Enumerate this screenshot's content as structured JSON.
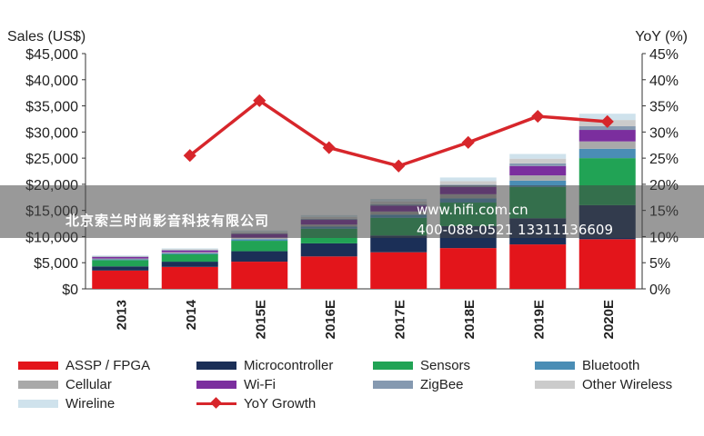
{
  "chart_data": {
    "type": "bar",
    "stacked": true,
    "y_left_label": "Sales (US$)",
    "y_right_label": "YoY (%)",
    "ylim": [
      0,
      45000
    ],
    "y_right_lim": [
      0,
      45
    ],
    "y_ticks": [
      "$0",
      "$5,000",
      "$10,000",
      "$15,000",
      "$20,000",
      "$25,000",
      "$30,000",
      "$35,000",
      "$40,000",
      "$45,000"
    ],
    "y_right_ticks": [
      "0%",
      "5%",
      "10%",
      "15%",
      "20%",
      "25%",
      "30%",
      "35%",
      "40%",
      "45%"
    ],
    "categories": [
      "2013",
      "2014",
      "2015E",
      "2016E",
      "2017E",
      "2018E",
      "2019E",
      "2020E"
    ],
    "series": [
      {
        "name": "ASSP / FPGA",
        "color": "#e3151b",
        "values": [
          3500,
          4200,
          5200,
          6200,
          7000,
          7800,
          8500,
          9500
        ]
      },
      {
        "name": "Microcontroller",
        "color": "#1b2f57",
        "values": [
          800,
          1000,
          2000,
          2500,
          3200,
          4200,
          5000,
          6500
        ]
      },
      {
        "name": "Sensors",
        "color": "#21a355",
        "values": [
          1200,
          1400,
          2000,
          2800,
          3400,
          4500,
          6000,
          9000
        ]
      },
      {
        "name": "Bluetooth",
        "color": "#4a8db5",
        "values": [
          150,
          200,
          300,
          400,
          600,
          800,
          1200,
          1800
        ]
      },
      {
        "name": "Cellular",
        "color": "#a9a9a9",
        "values": [
          150,
          200,
          300,
          400,
          600,
          800,
          1000,
          1400
        ]
      },
      {
        "name": "Wi-Fi",
        "color": "#7b2e9e",
        "values": [
          300,
          350,
          700,
          900,
          1100,
          1400,
          1800,
          2200
        ]
      },
      {
        "name": "ZigBee",
        "color": "#8599b0",
        "values": [
          80,
          100,
          150,
          200,
          300,
          400,
          500,
          700
        ]
      },
      {
        "name": "Other Wireless",
        "color": "#cbcbcb",
        "values": [
          100,
          150,
          250,
          350,
          500,
          700,
          900,
          1200
        ]
      },
      {
        "name": "Wireline",
        "color": "#cfe2ec",
        "values": [
          120,
          150,
          250,
          350,
          500,
          700,
          900,
          1200
        ]
      }
    ],
    "line": {
      "name": "YoY Growth",
      "color": "#d7262b",
      "values": [
        null,
        25.5,
        36,
        27,
        23.5,
        28,
        33,
        32
      ]
    },
    "grid": false,
    "legend": "bottom"
  },
  "watermark": {
    "company": "北京索兰时尚影音科技有限公司",
    "url": "www.hifi.com.cn",
    "phone": "400-088-0521  13311136609"
  }
}
